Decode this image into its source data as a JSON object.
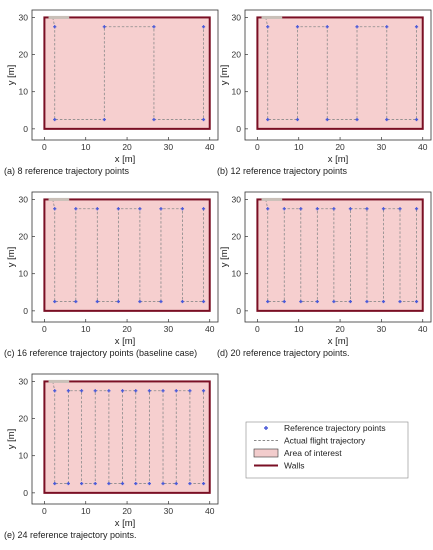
{
  "legend": {
    "items": [
      {
        "label": "Reference trajectory points",
        "kind": "marker",
        "color": "#4a5ad8"
      },
      {
        "label": "Actual flight trajectory",
        "kind": "dashed-line",
        "color": "#888888"
      },
      {
        "label": "Area of interest",
        "kind": "patch",
        "color": "#f2cccc"
      },
      {
        "label": "Walls",
        "kind": "line",
        "color": "#7a0f24"
      }
    ]
  },
  "chart_data": [
    {
      "type": "scatter",
      "caption": "(a) 8 reference trajectory points",
      "xlabel": "x [m]",
      "ylabel": "y [m]",
      "xlim": [
        -3,
        42
      ],
      "ylim": [
        -3,
        32
      ],
      "xticks": [
        0,
        10,
        20,
        30,
        40
      ],
      "yticks": [
        0,
        10,
        20,
        30
      ],
      "area": {
        "x": [
          0,
          40
        ],
        "y": [
          0,
          30
        ]
      },
      "walls": {
        "x": [
          0,
          40
        ],
        "y": [
          0,
          30
        ]
      },
      "columns_x": [
        2.5,
        14.5,
        26.5,
        38.5
      ],
      "y_bottom": 2.5,
      "y_top": 27.5,
      "reference_points": [
        [
          2.5,
          27.5
        ],
        [
          2.5,
          2.5
        ],
        [
          14.5,
          2.5
        ],
        [
          14.5,
          27.5
        ],
        [
          26.5,
          27.5
        ],
        [
          26.5,
          2.5
        ],
        [
          38.5,
          2.5
        ],
        [
          38.5,
          27.5
        ]
      ]
    },
    {
      "type": "scatter",
      "caption": "(b) 12 reference trajectory points",
      "xlabel": "x [m]",
      "ylabel": "y [m]",
      "xlim": [
        -3,
        42
      ],
      "ylim": [
        -3,
        32
      ],
      "xticks": [
        0,
        10,
        20,
        30,
        40
      ],
      "yticks": [
        0,
        10,
        20,
        30
      ],
      "area": {
        "x": [
          0,
          40
        ],
        "y": [
          0,
          30
        ]
      },
      "walls": {
        "x": [
          0,
          40
        ],
        "y": [
          0,
          30
        ]
      },
      "columns_x": [
        2.5,
        9.7,
        16.9,
        24.1,
        31.3,
        38.5
      ],
      "y_bottom": 2.5,
      "y_top": 27.5,
      "reference_points": [
        [
          2.5,
          27.5
        ],
        [
          2.5,
          2.5
        ],
        [
          9.7,
          2.5
        ],
        [
          9.7,
          27.5
        ],
        [
          16.9,
          27.5
        ],
        [
          16.9,
          2.5
        ],
        [
          24.1,
          2.5
        ],
        [
          24.1,
          27.5
        ],
        [
          31.3,
          27.5
        ],
        [
          31.3,
          2.5
        ],
        [
          38.5,
          2.5
        ],
        [
          38.5,
          27.5
        ]
      ]
    },
    {
      "type": "scatter",
      "caption": "(c) 16 reference trajectory points (baseline case)",
      "xlabel": "x [m]",
      "ylabel": "y [m]",
      "xlim": [
        -3,
        42
      ],
      "ylim": [
        -3,
        32
      ],
      "xticks": [
        0,
        10,
        20,
        30,
        40
      ],
      "yticks": [
        0,
        10,
        20,
        30
      ],
      "area": {
        "x": [
          0,
          40
        ],
        "y": [
          0,
          30
        ]
      },
      "walls": {
        "x": [
          0,
          40
        ],
        "y": [
          0,
          30
        ]
      },
      "columns_x": [
        2.5,
        7.6,
        12.8,
        17.9,
        23.1,
        28.2,
        33.4,
        38.5
      ],
      "y_bottom": 2.5,
      "y_top": 27.5,
      "reference_points": [
        [
          2.5,
          27.5
        ],
        [
          2.5,
          2.5
        ],
        [
          7.6,
          2.5
        ],
        [
          7.6,
          27.5
        ],
        [
          12.8,
          27.5
        ],
        [
          12.8,
          2.5
        ],
        [
          17.9,
          2.5
        ],
        [
          17.9,
          27.5
        ],
        [
          23.1,
          27.5
        ],
        [
          23.1,
          2.5
        ],
        [
          28.2,
          2.5
        ],
        [
          28.2,
          27.5
        ],
        [
          33.4,
          27.5
        ],
        [
          33.4,
          2.5
        ],
        [
          38.5,
          2.5
        ],
        [
          38.5,
          27.5
        ]
      ]
    },
    {
      "type": "scatter",
      "caption": "(d) 20 reference trajectory points.",
      "xlabel": "x [m]",
      "ylabel": "y [m]",
      "xlim": [
        -3,
        42
      ],
      "ylim": [
        -3,
        32
      ],
      "xticks": [
        0,
        10,
        20,
        30,
        40
      ],
      "yticks": [
        0,
        10,
        20,
        30
      ],
      "area": {
        "x": [
          0,
          40
        ],
        "y": [
          0,
          30
        ]
      },
      "walls": {
        "x": [
          0,
          40
        ],
        "y": [
          0,
          30
        ]
      },
      "columns_x": [
        2.5,
        6.5,
        10.5,
        14.5,
        18.5,
        22.5,
        26.5,
        30.5,
        34.5,
        38.5
      ],
      "y_bottom": 2.5,
      "y_top": 27.5,
      "reference_points": [
        [
          2.5,
          27.5
        ],
        [
          2.5,
          2.5
        ],
        [
          6.5,
          2.5
        ],
        [
          6.5,
          27.5
        ],
        [
          10.5,
          27.5
        ],
        [
          10.5,
          2.5
        ],
        [
          14.5,
          2.5
        ],
        [
          14.5,
          27.5
        ],
        [
          18.5,
          27.5
        ],
        [
          18.5,
          2.5
        ],
        [
          22.5,
          2.5
        ],
        [
          22.5,
          27.5
        ],
        [
          26.5,
          27.5
        ],
        [
          26.5,
          2.5
        ],
        [
          30.5,
          2.5
        ],
        [
          30.5,
          27.5
        ],
        [
          34.5,
          27.5
        ],
        [
          34.5,
          2.5
        ],
        [
          38.5,
          2.5
        ],
        [
          38.5,
          27.5
        ]
      ]
    },
    {
      "type": "scatter",
      "caption": "(e) 24 reference trajectory points.",
      "xlabel": "x [m]",
      "ylabel": "y [m]",
      "xlim": [
        -3,
        42
      ],
      "ylim": [
        -3,
        32
      ],
      "xticks": [
        0,
        10,
        20,
        30,
        40
      ],
      "yticks": [
        0,
        10,
        20,
        30
      ],
      "area": {
        "x": [
          0,
          40
        ],
        "y": [
          0,
          30
        ]
      },
      "walls": {
        "x": [
          0,
          40
        ],
        "y": [
          0,
          30
        ]
      },
      "columns_x": [
        2.5,
        5.8,
        9.0,
        12.3,
        15.6,
        18.9,
        22.1,
        25.4,
        28.7,
        31.9,
        35.2,
        38.5
      ],
      "y_bottom": 2.5,
      "y_top": 27.5,
      "reference_points": [
        [
          2.5,
          27.5
        ],
        [
          2.5,
          2.5
        ],
        [
          5.8,
          2.5
        ],
        [
          5.8,
          27.5
        ],
        [
          9.0,
          27.5
        ],
        [
          9.0,
          2.5
        ],
        [
          12.3,
          2.5
        ],
        [
          12.3,
          27.5
        ],
        [
          15.6,
          27.5
        ],
        [
          15.6,
          2.5
        ],
        [
          18.9,
          2.5
        ],
        [
          18.9,
          27.5
        ],
        [
          22.1,
          27.5
        ],
        [
          22.1,
          2.5
        ],
        [
          25.4,
          2.5
        ],
        [
          25.4,
          27.5
        ],
        [
          28.7,
          27.5
        ],
        [
          28.7,
          2.5
        ],
        [
          31.9,
          2.5
        ],
        [
          31.9,
          27.5
        ],
        [
          35.2,
          27.5
        ],
        [
          35.2,
          2.5
        ],
        [
          38.5,
          2.5
        ],
        [
          38.5,
          27.5
        ]
      ]
    }
  ]
}
